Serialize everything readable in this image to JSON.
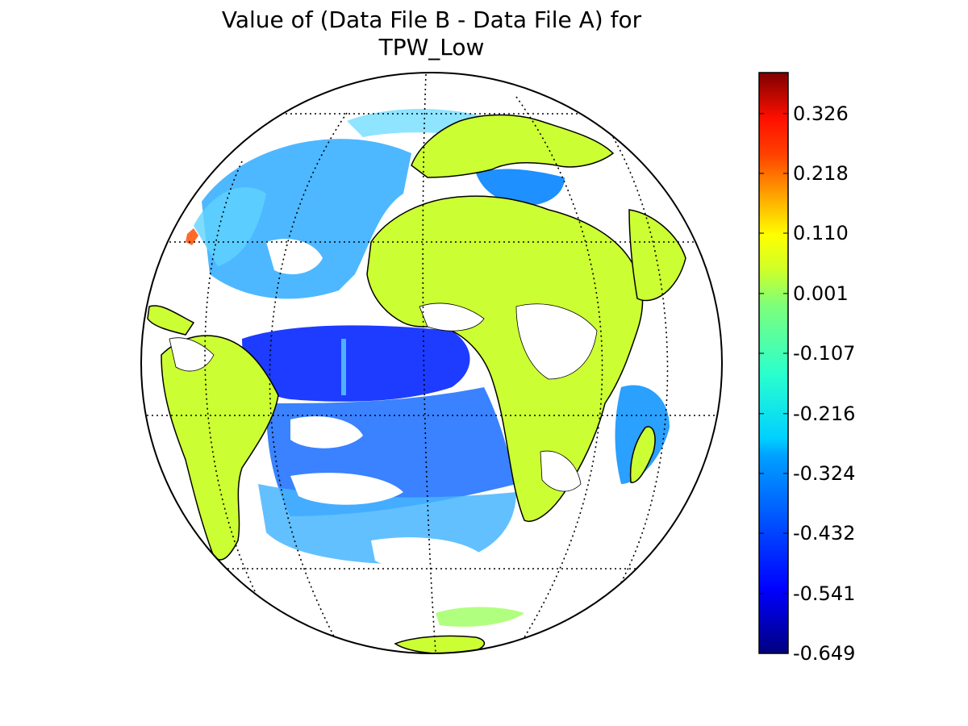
{
  "title": {
    "line1": "Value of (Data File B - Data File A) for",
    "line2": "TPW_Low"
  },
  "colorbar": {
    "min": -0.649,
    "max": 0.4,
    "tick_labels": [
      "0.326",
      "0.218",
      "0.110",
      "0.001",
      "-0.107",
      "-0.216",
      "-0.324",
      "-0.432",
      "-0.541",
      "-0.649"
    ],
    "tick_values": [
      0.326,
      0.218,
      0.11,
      0.001,
      -0.107,
      -0.216,
      -0.324,
      -0.432,
      -0.541,
      -0.649
    ],
    "colormap": "jet"
  },
  "map": {
    "projection": "orthographic",
    "graticule": "dotted",
    "colors": {
      "land": "#ccff33",
      "ocean_dark": "#1a2bff",
      "ocean_mid": "#2f8cff",
      "ocean_light": "#36c6ff",
      "ocean_cyan": "#3ff0ff",
      "anomaly_hot": "#ff6a2a"
    }
  }
}
